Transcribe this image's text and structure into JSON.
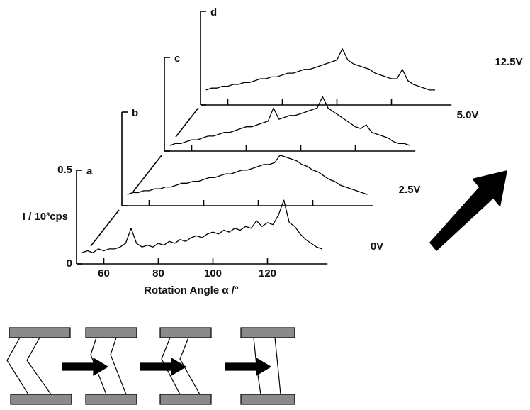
{
  "chart_data": {
    "type": "line",
    "x_label": "Rotation Angle α /°",
    "y_label": "I / 10³cps",
    "x": [
      52,
      54,
      56,
      58,
      60,
      62,
      64,
      66,
      68,
      70,
      72,
      74,
      76,
      78,
      80,
      82,
      84,
      86,
      88,
      90,
      92,
      94,
      96,
      98,
      100,
      102,
      104,
      106,
      108,
      110,
      112,
      114,
      116,
      118,
      120,
      122,
      124,
      126,
      128,
      130,
      132,
      134,
      136,
      138,
      140
    ],
    "xlim": [
      50,
      142
    ],
    "ylim": [
      0,
      0.5
    ],
    "xticks": [
      60,
      80,
      100,
      120
    ],
    "yticks": [
      0,
      0.5
    ],
    "series": [
      {
        "name": "0V",
        "label": "a",
        "color": "#000000",
        "values": [
          0.06,
          0.07,
          0.06,
          0.08,
          0.07,
          0.08,
          0.08,
          0.09,
          0.11,
          0.19,
          0.11,
          0.09,
          0.1,
          0.09,
          0.11,
          0.1,
          0.12,
          0.11,
          0.13,
          0.12,
          0.14,
          0.15,
          0.14,
          0.16,
          0.17,
          0.16,
          0.18,
          0.17,
          0.19,
          0.18,
          0.2,
          0.19,
          0.23,
          0.2,
          0.22,
          0.21,
          0.26,
          0.34,
          0.22,
          0.2,
          0.16,
          0.13,
          0.11,
          0.09,
          0.08
        ]
      },
      {
        "name": "2.5V",
        "label": "b",
        "color": "#000000",
        "values": [
          0.06,
          0.07,
          0.07,
          0.08,
          0.08,
          0.09,
          0.09,
          0.1,
          0.1,
          0.11,
          0.12,
          0.12,
          0.13,
          0.13,
          0.14,
          0.15,
          0.15,
          0.16,
          0.17,
          0.17,
          0.18,
          0.19,
          0.19,
          0.2,
          0.21,
          0.22,
          0.22,
          0.23,
          0.27,
          0.26,
          0.25,
          0.24,
          0.22,
          0.21,
          0.19,
          0.18,
          0.16,
          0.14,
          0.13,
          0.11,
          0.1,
          0.09,
          0.08,
          0.07,
          0.06
        ]
      },
      {
        "name": "5.0V",
        "label": "c",
        "color": "#000000",
        "values": [
          0.03,
          0.04,
          0.04,
          0.05,
          0.06,
          0.06,
          0.07,
          0.08,
          0.08,
          0.09,
          0.1,
          0.1,
          0.11,
          0.12,
          0.13,
          0.13,
          0.14,
          0.15,
          0.16,
          0.23,
          0.17,
          0.18,
          0.19,
          0.19,
          0.2,
          0.21,
          0.22,
          0.23,
          0.29,
          0.23,
          0.21,
          0.19,
          0.17,
          0.15,
          0.13,
          0.12,
          0.14,
          0.1,
          0.09,
          0.08,
          0.07,
          0.05,
          0.04,
          0.04,
          0.03
        ]
      },
      {
        "name": "12.5V",
        "label": "d",
        "color": "#000000",
        "values": [
          0.08,
          0.09,
          0.09,
          0.1,
          0.1,
          0.11,
          0.11,
          0.12,
          0.12,
          0.13,
          0.14,
          0.14,
          0.15,
          0.15,
          0.16,
          0.17,
          0.17,
          0.18,
          0.19,
          0.19,
          0.2,
          0.21,
          0.22,
          0.23,
          0.24,
          0.3,
          0.24,
          0.22,
          0.21,
          0.2,
          0.19,
          0.17,
          0.16,
          0.15,
          0.14,
          0.14,
          0.19,
          0.13,
          0.11,
          0.1,
          0.09,
          0.08,
          0.08,
          null,
          null
        ]
      }
    ]
  }
}
